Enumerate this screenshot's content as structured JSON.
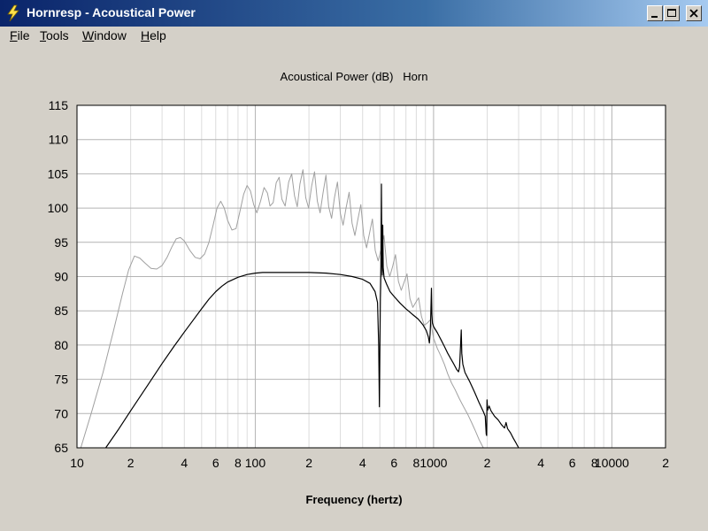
{
  "window": {
    "title": "Hornresp - Acoustical Power"
  },
  "menu": {
    "items": [
      {
        "label": "File",
        "key": "F"
      },
      {
        "label": "Tools",
        "key": "T"
      },
      {
        "label": "Window",
        "key": "W"
      },
      {
        "label": "Help",
        "key": "H"
      }
    ]
  },
  "chart_data": {
    "type": "line",
    "title": "Acoustical Power (dB)   Horn",
    "xlabel": "Frequency (hertz)",
    "ylabel": "",
    "xscale": "log",
    "xlim": [
      10,
      20000
    ],
    "ylim": [
      65,
      115
    ],
    "yticks": [
      115,
      110,
      105,
      100,
      95,
      90,
      85,
      80,
      75,
      70,
      65
    ],
    "xticks": [
      {
        "value": 10,
        "label": "10"
      },
      {
        "value": 20,
        "label": "2"
      },
      {
        "value": 40,
        "label": "4"
      },
      {
        "value": 60,
        "label": "6"
      },
      {
        "value": 80,
        "label": "8"
      },
      {
        "value": 100,
        "label": "100"
      },
      {
        "value": 200,
        "label": "2"
      },
      {
        "value": 400,
        "label": "4"
      },
      {
        "value": 600,
        "label": "6"
      },
      {
        "value": 800,
        "label": "8"
      },
      {
        "value": 1000,
        "label": "1000"
      },
      {
        "value": 2000,
        "label": "2"
      },
      {
        "value": 4000,
        "label": "4"
      },
      {
        "value": 6000,
        "label": "6"
      },
      {
        "value": 8000,
        "label": "8"
      },
      {
        "value": 10000,
        "label": "10000"
      },
      {
        "value": 20000,
        "label": "2"
      }
    ],
    "grid": true,
    "series": [
      {
        "color": "#a0a0a0",
        "points": [
          [
            10.5,
            65
          ],
          [
            12,
            70
          ],
          [
            14,
            76
          ],
          [
            16,
            82
          ],
          [
            18,
            87.5
          ],
          [
            19.5,
            91
          ],
          [
            21,
            93
          ],
          [
            22.5,
            92.7
          ],
          [
            24,
            92
          ],
          [
            26,
            91.2
          ],
          [
            28,
            91.1
          ],
          [
            30,
            91.6
          ],
          [
            32,
            92.8
          ],
          [
            34,
            94.3
          ],
          [
            36,
            95.5
          ],
          [
            38,
            95.7
          ],
          [
            40,
            95.2
          ],
          [
            43,
            93.8
          ],
          [
            46,
            92.8
          ],
          [
            49,
            92.6
          ],
          [
            52,
            93.3
          ],
          [
            55,
            95
          ],
          [
            58,
            97.5
          ],
          [
            61,
            100
          ],
          [
            64,
            101
          ],
          [
            67,
            100
          ],
          [
            70,
            98.2
          ],
          [
            74,
            96.8
          ],
          [
            78,
            97
          ],
          [
            82,
            99.5
          ],
          [
            86,
            102
          ],
          [
            90,
            103.3
          ],
          [
            94,
            102.5
          ],
          [
            98,
            100.5
          ],
          [
            102,
            99.3
          ],
          [
            107,
            101
          ],
          [
            112,
            103
          ],
          [
            117,
            102.2
          ],
          [
            121,
            100.3
          ],
          [
            126,
            100.8
          ],
          [
            131,
            103.7
          ],
          [
            136,
            104.5
          ],
          [
            141,
            101.3
          ],
          [
            147,
            100.3
          ],
          [
            154,
            103.8
          ],
          [
            160,
            105
          ],
          [
            166,
            101.8
          ],
          [
            172,
            100.2
          ],
          [
            178,
            103.5
          ],
          [
            185,
            105.6
          ],
          [
            192,
            101.5
          ],
          [
            199,
            100
          ],
          [
            207,
            103.2
          ],
          [
            215,
            105.3
          ],
          [
            223,
            101
          ],
          [
            231,
            99.3
          ],
          [
            240,
            102.2
          ],
          [
            249,
            104.8
          ],
          [
            258,
            100.2
          ],
          [
            268,
            98.5
          ],
          [
            278,
            101.5
          ],
          [
            289,
            103.8
          ],
          [
            300,
            99.2
          ],
          [
            311,
            97.5
          ],
          [
            323,
            100
          ],
          [
            336,
            102.3
          ],
          [
            349,
            97.8
          ],
          [
            362,
            96
          ],
          [
            376,
            98.3
          ],
          [
            391,
            100.5
          ],
          [
            406,
            96
          ],
          [
            421,
            94.2
          ],
          [
            437,
            96.3
          ],
          [
            454,
            98.4
          ],
          [
            471,
            93.8
          ],
          [
            489,
            92.3
          ],
          [
            508,
            94
          ],
          [
            527,
            96
          ],
          [
            547,
            91.5
          ],
          [
            568,
            90
          ],
          [
            590,
            91.5
          ],
          [
            612,
            93.2
          ],
          [
            635,
            89.3
          ],
          [
            659,
            88
          ],
          [
            684,
            89.2
          ],
          [
            710,
            90.4
          ],
          [
            737,
            86.8
          ],
          [
            765,
            85.5
          ],
          [
            794,
            86.2
          ],
          [
            824,
            86.9
          ],
          [
            855,
            84.2
          ],
          [
            887,
            82.9
          ],
          [
            921,
            83.2
          ],
          [
            960,
            83.7
          ],
          [
            1000,
            81
          ],
          [
            1050,
            79.5
          ],
          [
            1100,
            78.4
          ],
          [
            1150,
            77.2
          ],
          [
            1200,
            75.8
          ],
          [
            1260,
            74.5
          ],
          [
            1320,
            73.5
          ],
          [
            1400,
            72.1
          ],
          [
            1480,
            70.9
          ],
          [
            1560,
            69.8
          ],
          [
            1640,
            68.6
          ],
          [
            1720,
            67.4
          ],
          [
            1800,
            66.2
          ],
          [
            1900,
            65
          ]
        ]
      },
      {
        "color": "#000000",
        "points": [
          [
            14.5,
            65
          ],
          [
            17,
            67.6
          ],
          [
            20,
            70.4
          ],
          [
            25,
            74.2
          ],
          [
            30,
            77.3
          ],
          [
            35,
            79.8
          ],
          [
            40,
            81.9
          ],
          [
            45,
            83.7
          ],
          [
            50,
            85.3
          ],
          [
            55,
            86.7
          ],
          [
            60,
            87.8
          ],
          [
            65,
            88.6
          ],
          [
            70,
            89.2
          ],
          [
            80,
            89.9
          ],
          [
            90,
            90.3
          ],
          [
            100,
            90.5
          ],
          [
            110,
            90.6
          ],
          [
            130,
            90.6
          ],
          [
            160,
            90.6
          ],
          [
            200,
            90.6
          ],
          [
            250,
            90.5
          ],
          [
            300,
            90.3
          ],
          [
            350,
            90
          ],
          [
            400,
            89.6
          ],
          [
            440,
            89
          ],
          [
            470,
            87.8
          ],
          [
            485,
            86.2
          ],
          [
            492,
            80
          ],
          [
            497,
            71
          ],
          [
            500,
            80
          ],
          [
            503,
            86.8
          ],
          [
            505,
            88.5
          ],
          [
            507,
            91.5
          ],
          [
            510,
            103.5
          ],
          [
            513,
            93
          ],
          [
            516,
            90.2
          ],
          [
            519,
            97.5
          ],
          [
            522,
            91.3
          ],
          [
            528,
            89.8
          ],
          [
            545,
            88.9
          ],
          [
            570,
            87.8
          ],
          [
            600,
            87.1
          ],
          [
            650,
            86.1
          ],
          [
            700,
            85.3
          ],
          [
            760,
            84.5
          ],
          [
            820,
            83.8
          ],
          [
            870,
            83
          ],
          [
            910,
            82.1
          ],
          [
            935,
            81.2
          ],
          [
            948,
            80.3
          ],
          [
            956,
            81.6
          ],
          [
            962,
            83.2
          ],
          [
            968,
            86.2
          ],
          [
            973,
            88.3
          ],
          [
            978,
            84.5
          ],
          [
            985,
            83.2
          ],
          [
            1000,
            82.7
          ],
          [
            1050,
            81.8
          ],
          [
            1100,
            80.8
          ],
          [
            1150,
            79.8
          ],
          [
            1200,
            78.8
          ],
          [
            1250,
            78
          ],
          [
            1300,
            77.2
          ],
          [
            1350,
            76.4
          ],
          [
            1380,
            76.1
          ],
          [
            1400,
            76.8
          ],
          [
            1420,
            80.5
          ],
          [
            1430,
            82.2
          ],
          [
            1440,
            78.8
          ],
          [
            1460,
            77.2
          ],
          [
            1500,
            76
          ],
          [
            1600,
            74.6
          ],
          [
            1700,
            73.1
          ],
          [
            1800,
            71.6
          ],
          [
            1900,
            70.3
          ],
          [
            1950,
            69.6
          ],
          [
            1975,
            67
          ],
          [
            1985,
            66.8
          ],
          [
            1995,
            72
          ],
          [
            2010,
            70.5
          ],
          [
            2050,
            71.1
          ],
          [
            2100,
            70.4
          ],
          [
            2200,
            69.6
          ],
          [
            2300,
            69.1
          ],
          [
            2400,
            68.4
          ],
          [
            2500,
            67.9
          ],
          [
            2550,
            68.7
          ],
          [
            2600,
            67.8
          ],
          [
            2700,
            67.2
          ],
          [
            2800,
            66.4
          ],
          [
            2900,
            65.7
          ],
          [
            3000,
            65
          ]
        ]
      }
    ]
  }
}
